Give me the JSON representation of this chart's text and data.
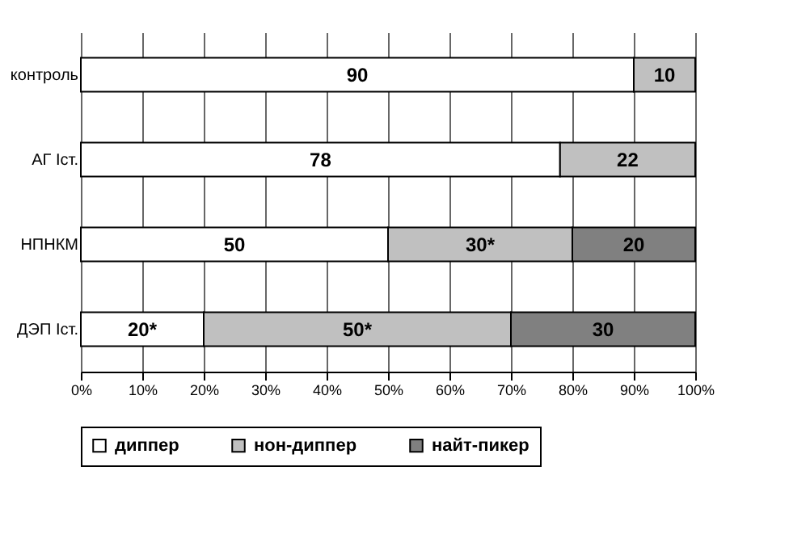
{
  "chart_data": {
    "type": "bar",
    "orientation": "horizontal",
    "stacked": true,
    "categories": [
      "контроль",
      "АГ Iст.",
      "НПНКМ",
      "ДЭП Iст."
    ],
    "series": [
      {
        "name": "диппер",
        "color": "#ffffff",
        "values": [
          90,
          78,
          50,
          20
        ],
        "value_labels": [
          "90",
          "78",
          "50",
          "20*"
        ]
      },
      {
        "name": "нон-диппер",
        "color": "#c0c0c0",
        "values": [
          10,
          22,
          30,
          50
        ],
        "value_labels": [
          "10",
          "22",
          "30*",
          "50*"
        ]
      },
      {
        "name": "найт-пикер",
        "color": "#808080",
        "values": [
          null,
          null,
          20,
          30
        ],
        "value_labels": [
          null,
          null,
          "20",
          "30"
        ]
      }
    ],
    "xlim": [
      0,
      100
    ],
    "xticks": [
      {
        "value": 0,
        "label": "0%"
      },
      {
        "value": 10,
        "label": "10%"
      },
      {
        "value": 20,
        "label": "20%"
      },
      {
        "value": 30,
        "label": "30%"
      },
      {
        "value": 40,
        "label": "40%"
      },
      {
        "value": 50,
        "label": "50%"
      },
      {
        "value": 60,
        "label": "60%"
      },
      {
        "value": 70,
        "label": "70%"
      },
      {
        "value": 80,
        "label": "80%"
      },
      {
        "value": 90,
        "label": "90%"
      },
      {
        "value": 100,
        "label": "100%"
      }
    ],
    "grid": "x",
    "legend": "bottom"
  }
}
